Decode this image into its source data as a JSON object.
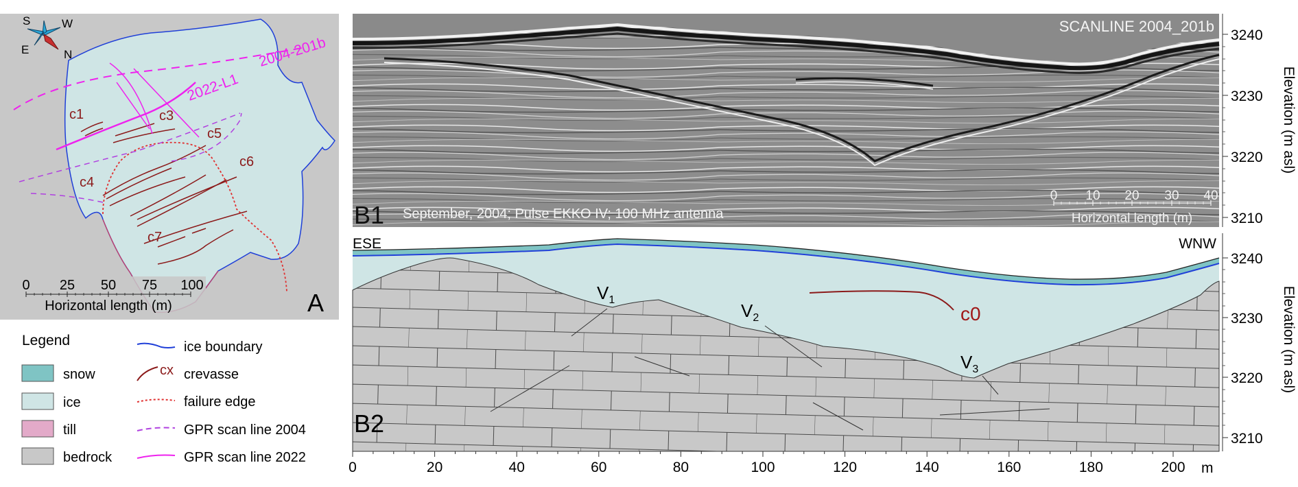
{
  "compass": {
    "n": "N",
    "s": "S",
    "e": "E",
    "w": "W"
  },
  "panel_a": {
    "letter": "A",
    "crevasse_labels": [
      "c1",
      "c3",
      "c4",
      "c5",
      "c6",
      "c7"
    ],
    "scan_2022": "2022-L1",
    "scan_2004": "2004-201b",
    "scalebar_ticks": [
      "0",
      "25",
      "50",
      "75",
      "100"
    ],
    "scalebar_label": "Horizontal length (m)"
  },
  "panel_b1": {
    "letter": "B1",
    "title": "SCANLINE 2004_201b",
    "caption": "September, 2004; Pulse EKKO IV; 100 MHz antenna",
    "scale_ticks": [
      "0",
      "10",
      "20",
      "30",
      "40"
    ],
    "scale_label": "Horizontal length (m)",
    "y_ticks": [
      "3240",
      "3230",
      "3220",
      "3210"
    ],
    "y_label": "Elevation (m asl)"
  },
  "panel_b2": {
    "letter": "B2",
    "left_dir": "ESE",
    "right_dir": "WNW",
    "v1": "V",
    "v1_sub": "1",
    "v2": "V",
    "v2_sub": "2",
    "v3": "V",
    "v3_sub": "3",
    "crevasse": "c0",
    "y_ticks": [
      "3240",
      "3230",
      "3220",
      "3210"
    ],
    "y_label": "Elevation (m asl)",
    "x_ticks": [
      "0",
      "20",
      "40",
      "60",
      "80",
      "100",
      "120",
      "140",
      "160",
      "180",
      "200"
    ],
    "x_unit": "m"
  },
  "legend": {
    "title": "Legend",
    "items": [
      {
        "label": "snow",
        "color": "#7fc4c4"
      },
      {
        "label": "ice",
        "color": "#cfe5e5"
      },
      {
        "label": "till",
        "color": "#e3aac9"
      },
      {
        "label": "bedrock",
        "color": "#c8c8c8"
      }
    ],
    "lines": [
      {
        "label": "ice boundary",
        "color": "#1f3fd8"
      },
      {
        "label": "crevasse",
        "mark": "cx",
        "color": "#8b1a1a"
      },
      {
        "label": "failure edge",
        "color": "#e03030"
      },
      {
        "label": "GPR scan line 2004",
        "color": "#b040e0"
      },
      {
        "label": "GPR scan line 2022",
        "color": "#ee22ee"
      }
    ]
  }
}
